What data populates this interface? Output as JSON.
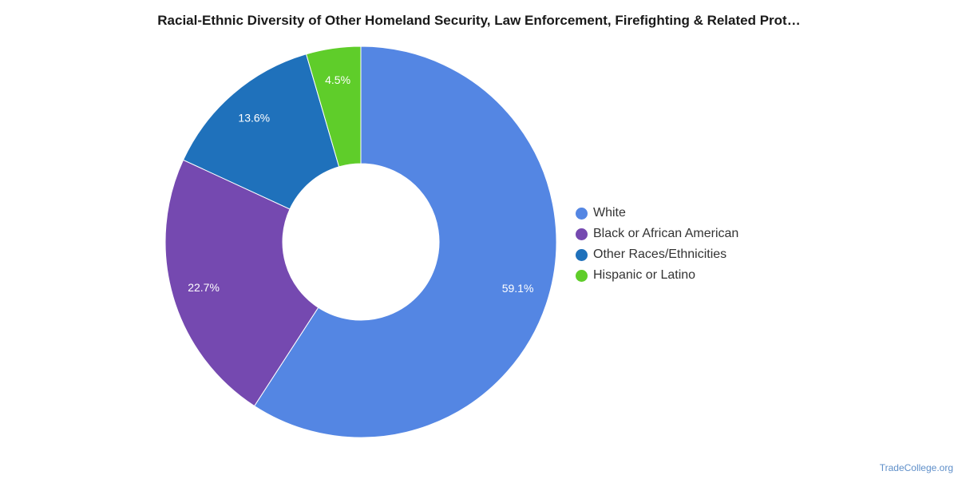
{
  "chart_data": {
    "type": "pie",
    "variant": "donut",
    "title": "Racial-Ethnic Diversity of Other Homeland Security, Law Enforcement, Firefighting & Related Prot…",
    "categories": [
      "White",
      "Black or African American",
      "Other Races/Ethnicities",
      "Hispanic or Latino"
    ],
    "values": [
      59.1,
      22.7,
      13.6,
      4.5
    ],
    "value_labels": [
      "59.1%",
      "22.7%",
      "13.6%",
      "4.5%"
    ],
    "colors": [
      "#5486e3",
      "#7549b0",
      "#1f71bb",
      "#5fcd2a"
    ],
    "legend_placement": "right"
  },
  "source": {
    "watermark": "TradeCollege.org"
  }
}
